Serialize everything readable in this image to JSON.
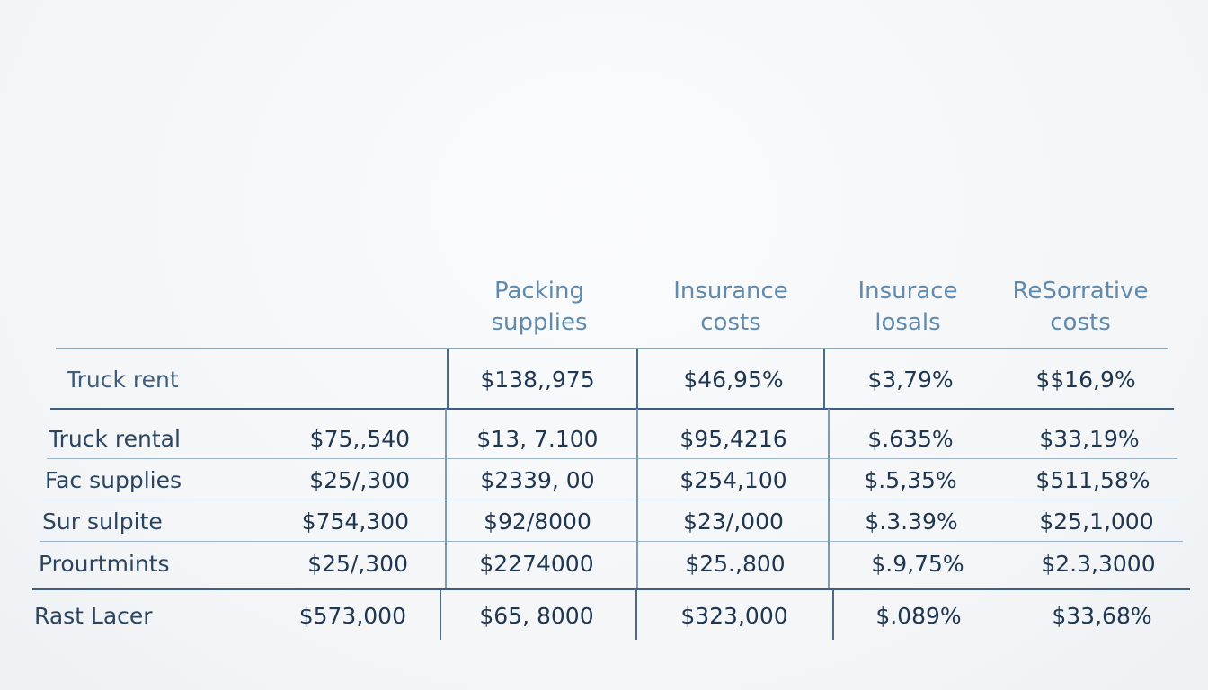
{
  "table": {
    "headers": [
      {
        "line1": "Packing",
        "line2": "supplies"
      },
      {
        "line1": "Insurance",
        "line2": "costs"
      },
      {
        "line1": "Insurace",
        "line2": "losals"
      },
      {
        "line1": "ReSorrative",
        "line2": "costs"
      }
    ],
    "rows": [
      {
        "label": "Truck rent",
        "first": "",
        "cells": [
          "$138,,975",
          "$46,95%",
          "$3,79%",
          "$$16,9%"
        ]
      },
      {
        "label": "Truck rental",
        "first": "$75,,540",
        "cells": [
          "$13, 7.100",
          "$95,4216",
          "$.635%",
          "$33,19%"
        ]
      },
      {
        "label": "Fac supplies",
        "first": "$25/,300",
        "cells": [
          "$2339, 00",
          "$254,100",
          "$.5,35%",
          "$511,58%"
        ]
      },
      {
        "label": "Sur sulpite",
        "first": "$754,300",
        "cells": [
          "$92/8000",
          "$23/,000",
          "$.3.39%",
          "$25,1,000"
        ]
      },
      {
        "label": "Prourtmints",
        "first": "$25/,300",
        "cells": [
          "$2274000",
          "$25.,800",
          "$.9,75%",
          "$2.3,3000"
        ]
      },
      {
        "label": "Rast Lacer",
        "first": "$573,000",
        "cells": [
          "$65, 8000",
          "$323,000",
          "$.089%",
          "$33,68%"
        ]
      }
    ]
  }
}
